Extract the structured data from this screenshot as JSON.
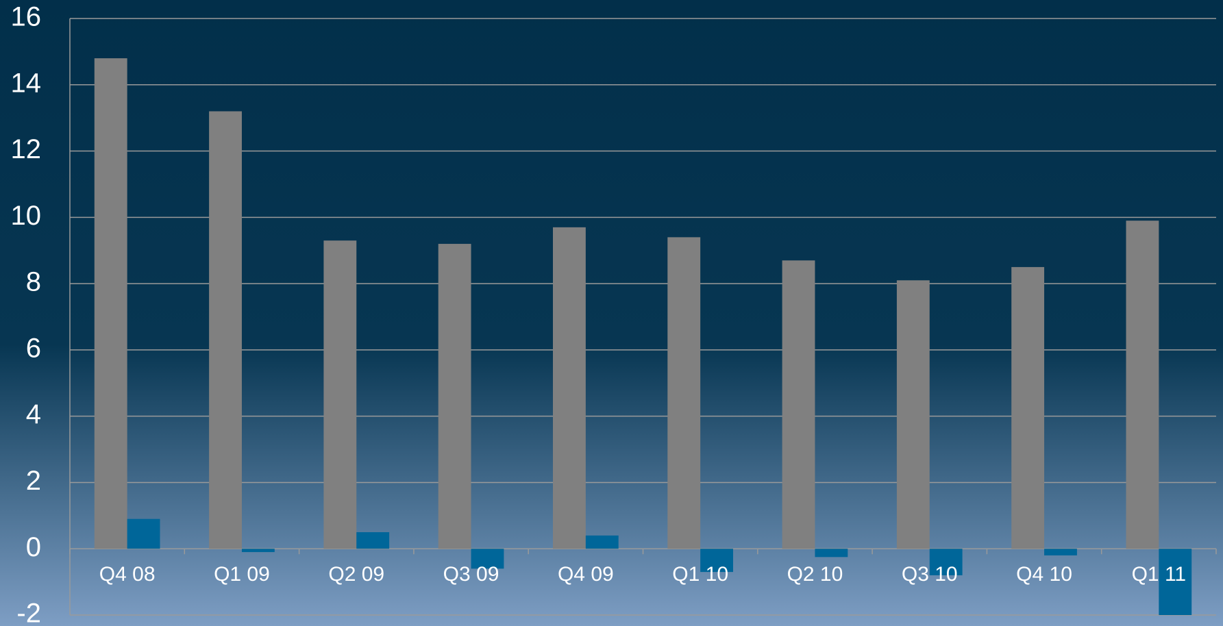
{
  "chart_data": {
    "type": "bar",
    "categories": [
      "Q4 08",
      "Q1 09",
      "Q2 09",
      "Q3 09",
      "Q4 09",
      "Q1 10",
      "Q2 10",
      "Q3 10",
      "Q4 10",
      "Q1 11"
    ],
    "series": [
      {
        "color": "#808080",
        "values": [
          14.8,
          13.2,
          9.3,
          9.2,
          9.7,
          9.4,
          8.7,
          8.1,
          8.5,
          9.9
        ]
      },
      {
        "color": "#006699",
        "values": [
          0.9,
          -0.1,
          0.5,
          -0.6,
          0.4,
          -0.7,
          -0.25,
          -0.8,
          -0.2,
          -2.0
        ]
      }
    ],
    "ylim": [
      -2,
      16
    ],
    "yticks": [
      -2,
      0,
      2,
      4,
      6,
      8,
      10,
      12,
      14,
      16
    ],
    "grid": true
  }
}
